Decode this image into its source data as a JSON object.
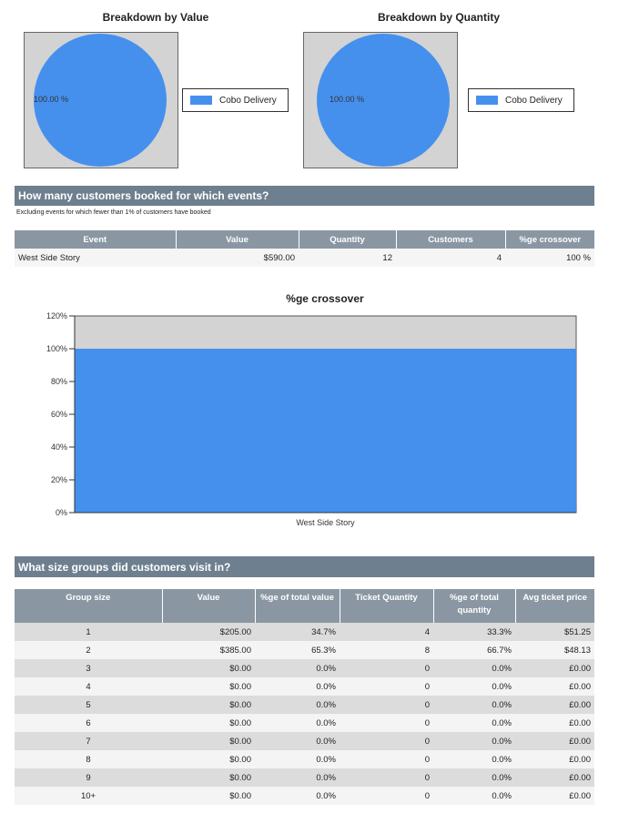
{
  "pie_value": {
    "title": "Breakdown by Value",
    "slice_label": "100.00 %",
    "legend": "Cobo Delivery",
    "color": "#4590ed"
  },
  "pie_quantity": {
    "title": "Breakdown by Quantity",
    "slice_label": "100.00 %",
    "legend": "Cobo Delivery",
    "color": "#4590ed"
  },
  "events_section": {
    "title": "How many customers booked for which events?",
    "note": "Excluding events for which fewer than 1% of customers have booked",
    "headers": [
      "Event",
      "Value",
      "Quantity",
      "Customers",
      "%ge crossover"
    ],
    "rows": [
      {
        "event": "West Side Story",
        "value": "$590.00",
        "quantity": "12",
        "customers": "4",
        "crossover": "100 %"
      }
    ]
  },
  "chart_data": {
    "type": "bar",
    "title": "%ge crossover",
    "categories": [
      "West Side Story"
    ],
    "values": [
      100
    ],
    "ylim": [
      0,
      120
    ],
    "yticks": [
      "0%",
      "20%",
      "40%",
      "60%",
      "80%",
      "100%",
      "120%"
    ],
    "bar_color": "#4590ed",
    "background_color": "#d3d3d3"
  },
  "groups_section": {
    "title": "What size groups did customers visit in?",
    "headers": [
      "Group size",
      "Value",
      "%ge of total value",
      "Ticket Quantity",
      "%ge of total quantity",
      "Avg ticket price"
    ],
    "rows": [
      {
        "size": "1",
        "value": "$205.00",
        "pct_value": "34.7%",
        "qty": "4",
        "pct_qty": "33.3%",
        "avg": "$51.25"
      },
      {
        "size": "2",
        "value": "$385.00",
        "pct_value": "65.3%",
        "qty": "8",
        "pct_qty": "66.7%",
        "avg": "$48.13"
      },
      {
        "size": "3",
        "value": "$0.00",
        "pct_value": "0.0%",
        "qty": "0",
        "pct_qty": "0.0%",
        "avg": "£0.00"
      },
      {
        "size": "4",
        "value": "$0.00",
        "pct_value": "0.0%",
        "qty": "0",
        "pct_qty": "0.0%",
        "avg": "£0.00"
      },
      {
        "size": "5",
        "value": "$0.00",
        "pct_value": "0.0%",
        "qty": "0",
        "pct_qty": "0.0%",
        "avg": "£0.00"
      },
      {
        "size": "6",
        "value": "$0.00",
        "pct_value": "0.0%",
        "qty": "0",
        "pct_qty": "0.0%",
        "avg": "£0.00"
      },
      {
        "size": "7",
        "value": "$0.00",
        "pct_value": "0.0%",
        "qty": "0",
        "pct_qty": "0.0%",
        "avg": "£0.00"
      },
      {
        "size": "8",
        "value": "$0.00",
        "pct_value": "0.0%",
        "qty": "0",
        "pct_qty": "0.0%",
        "avg": "£0.00"
      },
      {
        "size": "9",
        "value": "$0.00",
        "pct_value": "0.0%",
        "qty": "0",
        "pct_qty": "0.0%",
        "avg": "£0.00"
      },
      {
        "size": "10+",
        "value": "$0.00",
        "pct_value": "0.0%",
        "qty": "0",
        "pct_qty": "0.0%",
        "avg": "£0.00"
      }
    ]
  }
}
